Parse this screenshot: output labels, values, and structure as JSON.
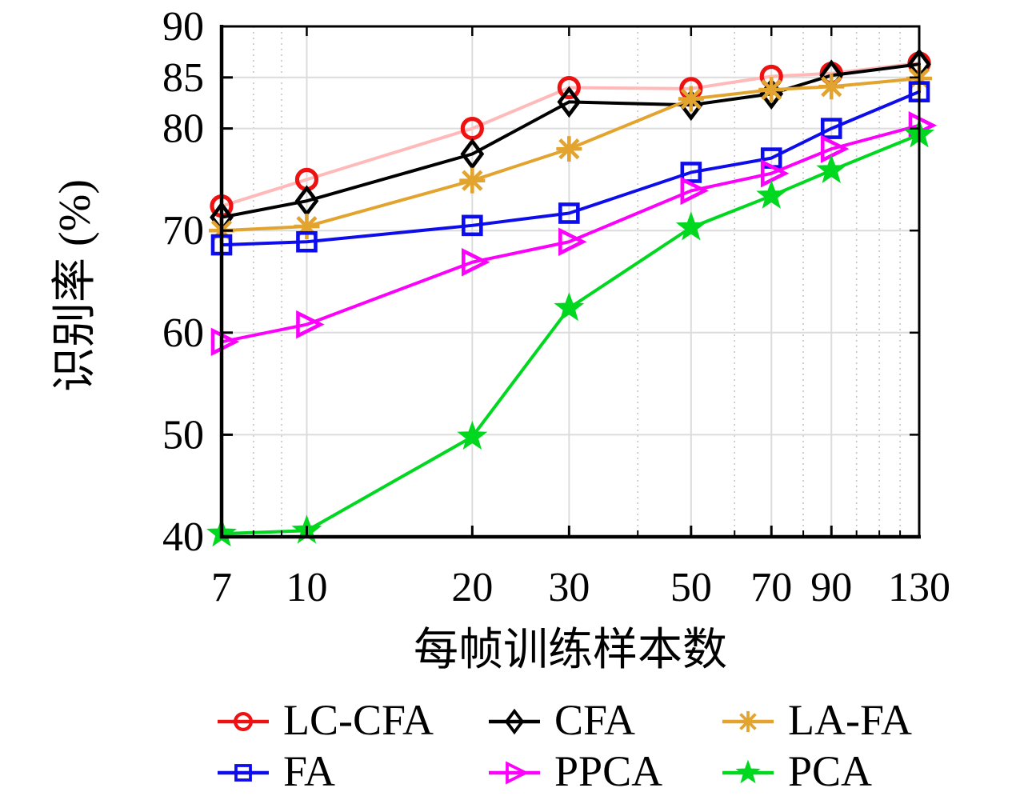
{
  "chart_data": {
    "type": "line",
    "title": "",
    "xlabel": "每帧训练样本数",
    "ylabel": "识别率 (%)",
    "x_scale": "log",
    "xlim": [
      7,
      130
    ],
    "ylim": [
      40,
      90
    ],
    "grid": true,
    "legend_position": "bottom",
    "x_ticks": [
      7,
      10,
      20,
      30,
      50,
      70,
      90,
      130
    ],
    "y_ticks": [
      40,
      50,
      60,
      70,
      80,
      85,
      90
    ],
    "x_gridlines": [
      10,
      20,
      30,
      50,
      70,
      90
    ],
    "x_minor_gridlines": [
      8,
      9,
      40,
      60,
      80,
      100,
      110,
      120
    ],
    "y_gridlines": [
      50,
      60,
      70,
      80,
      85
    ],
    "x": [
      7,
      10,
      20,
      30,
      50,
      70,
      90,
      130
    ],
    "series": [
      {
        "name": "LC-CFA",
        "marker": "circle",
        "color": "#ee1111",
        "line_color": "#ffb9b9",
        "values": [
          72.4,
          75.0,
          80.0,
          84.0,
          83.9,
          85.1,
          85.4,
          86.4
        ]
      },
      {
        "name": "CFA",
        "marker": "diamond",
        "color": "#000000",
        "line_color": "#000000",
        "values": [
          71.3,
          72.9,
          77.5,
          82.6,
          82.3,
          83.4,
          85.2,
          86.3
        ]
      },
      {
        "name": "LA-FA",
        "marker": "asterisk",
        "color": "#e2a42e",
        "line_color": "#e2a42e",
        "values": [
          70.0,
          70.4,
          74.9,
          78.0,
          82.9,
          83.8,
          84.1,
          84.9
        ]
      },
      {
        "name": "FA",
        "marker": "square",
        "color": "#0d0deb",
        "line_color": "#0d0deb",
        "values": [
          68.6,
          68.9,
          70.5,
          71.7,
          75.7,
          77.1,
          80.0,
          83.6
        ]
      },
      {
        "name": "PPCA",
        "marker": "triangle-right",
        "color": "#fb00fb",
        "line_color": "#fb00fb",
        "values": [
          59.1,
          60.8,
          66.9,
          68.9,
          73.9,
          75.6,
          78.0,
          80.3
        ]
      },
      {
        "name": "PCA",
        "marker": "star",
        "color": "#00d71f",
        "line_color": "#00d71f",
        "values": [
          40.3,
          40.6,
          49.8,
          62.4,
          70.3,
          73.4,
          75.9,
          79.4
        ]
      }
    ],
    "legend_rows": [
      [
        "LC-CFA",
        "CFA",
        "LA-FA"
      ],
      [
        "FA",
        "PPCA",
        "PCA"
      ]
    ],
    "colors": {
      "background": "#ffffff",
      "axis": "#000000",
      "grid_major": "#dcdcdc",
      "grid_minor": "#c4c4c4"
    }
  }
}
